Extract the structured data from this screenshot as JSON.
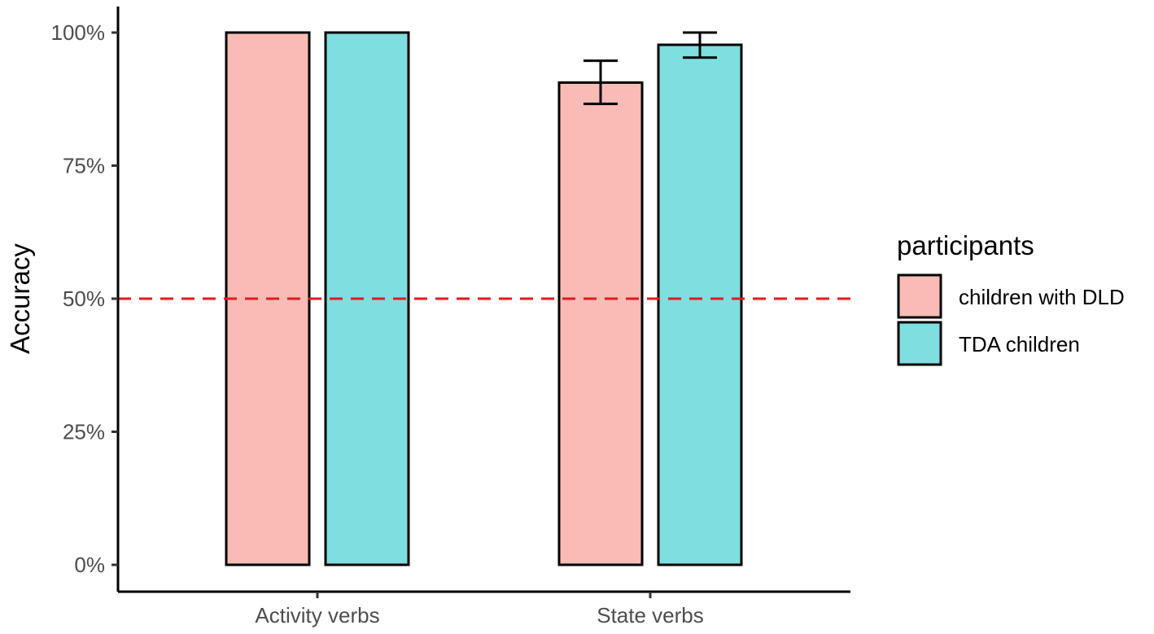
{
  "chart_data": {
    "type": "bar",
    "title": "",
    "xlabel": "",
    "ylabel": "Accuracy",
    "ylim": [
      0,
      1
    ],
    "yticks": [
      {
        "value": 0,
        "label": "0%"
      },
      {
        "value": 0.25,
        "label": "25%"
      },
      {
        "value": 0.5,
        "label": "50%"
      },
      {
        "value": 0.75,
        "label": "75%"
      },
      {
        "value": 1.0,
        "label": "100%"
      }
    ],
    "categories": [
      "Activity verbs",
      "State verbs"
    ],
    "series": [
      {
        "name": "children with DLD",
        "color": "#F8BBB6",
        "values": [
          1.0,
          0.906
        ],
        "error_low": [
          null,
          0.866
        ],
        "error_high": [
          null,
          0.947
        ]
      },
      {
        "name": "TDA children",
        "color": "#7FDEDF",
        "values": [
          1.0,
          0.977
        ],
        "error_low": [
          null,
          0.953
        ],
        "error_high": [
          null,
          1.0
        ]
      }
    ],
    "reference_line": {
      "value": 0.5,
      "color": "#E31A1C",
      "style": "dashed"
    },
    "legend": {
      "title": "participants",
      "position": "right"
    },
    "grid": false
  }
}
